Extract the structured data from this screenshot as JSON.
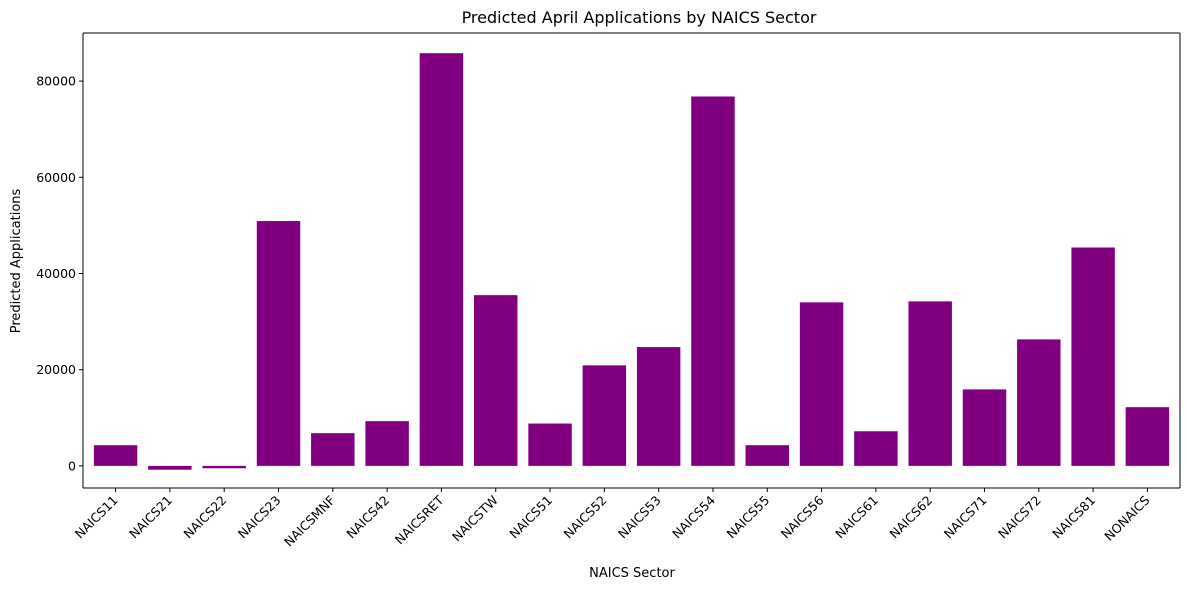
{
  "colors": {
    "bar": "#800080",
    "axis": "#000000",
    "background": "#ffffff"
  },
  "chart_data": {
    "type": "bar",
    "title": "Predicted April Applications by NAICS Sector",
    "xlabel": "NAICS Sector",
    "ylabel": "Predicted Applications",
    "categories": [
      "NAICS11",
      "NAICS21",
      "NAICS22",
      "NAICS23",
      "NAICSMNF",
      "NAICS42",
      "NAICSRET",
      "NAICSTW",
      "NAICS51",
      "NAICS52",
      "NAICS53",
      "NAICS54",
      "NAICS55",
      "NAICS56",
      "NAICS61",
      "NAICS62",
      "NAICS71",
      "NAICS72",
      "NAICS81",
      "NONAICS"
    ],
    "values": [
      4300,
      -800,
      -500,
      50900,
      6800,
      9300,
      85800,
      35500,
      8800,
      20900,
      24700,
      76800,
      4300,
      34000,
      7200,
      34200,
      15900,
      26300,
      45400,
      12200
    ],
    "ylim": [
      -4600,
      90000
    ],
    "yticks": [
      0,
      20000,
      40000,
      60000,
      80000
    ],
    "grid": false,
    "legend": false
  }
}
